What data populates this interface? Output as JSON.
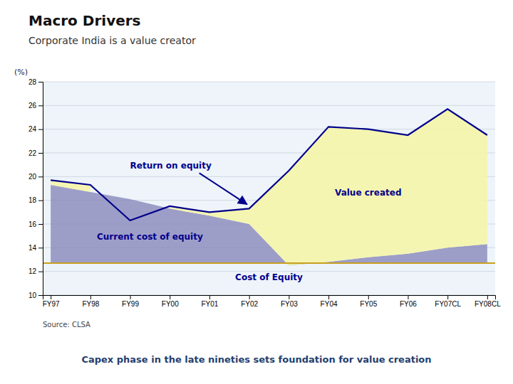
{
  "chart_data": {
    "type": "area",
    "title": "Macro Drivers",
    "subtitle": "Corporate India is a value creator",
    "source": "Source: CLSA",
    "footer": "Capex phase in the late nineties sets foundation for value creation",
    "y_label": "(%)",
    "categories": [
      "FY97",
      "FY98",
      "FY99",
      "FY00",
      "FY01",
      "FY02",
      "FY03",
      "FY04",
      "FY05",
      "FY06",
      "FY07CL",
      "FY08CL"
    ],
    "series": [
      {
        "name": "Return on equity",
        "type": "line",
        "color": "#00008B",
        "values": [
          19.7,
          19.3,
          16.3,
          17.5,
          17.0,
          17.3,
          20.5,
          24.2,
          24.0,
          23.5,
          25.7,
          23.5
        ]
      },
      {
        "name": "Current cost of equity",
        "type": "area",
        "color": "#8888bb",
        "values": [
          19.3,
          18.7,
          18.1,
          17.3,
          16.7,
          16.0,
          12.5,
          12.8,
          13.2,
          13.5,
          14.0,
          14.3
        ]
      }
    ],
    "reference_lines": [
      {
        "name": "Cost of Equity",
        "value": 12.7,
        "color": "#c8a020"
      }
    ],
    "value_created": {
      "label": "Value created",
      "color": "#f5f5aa"
    },
    "ylim": [
      10,
      28
    ],
    "yticks": [
      10,
      12,
      14,
      16,
      18,
      20,
      22,
      24,
      26,
      28
    ],
    "grid": true
  }
}
